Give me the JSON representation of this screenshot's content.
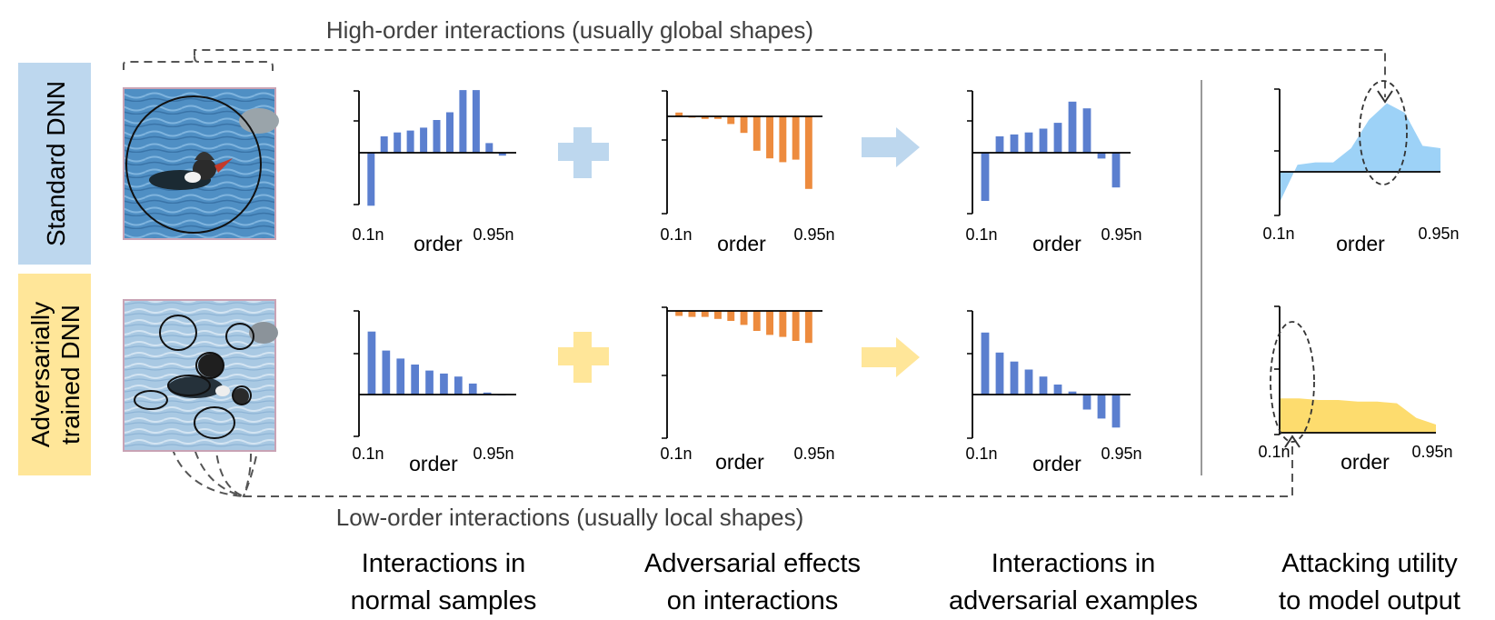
{
  "annotations": {
    "high_order": "High-order interactions (usually global shapes)",
    "low_order": "Low-order interactions (usually local shapes)"
  },
  "rows": [
    {
      "label_lines": [
        "Standard DNN"
      ],
      "color": "#bdd7ee"
    },
    {
      "label_lines": [
        "Adversarially",
        "trained DNN"
      ],
      "color": "#ffe699"
    }
  ],
  "columns": [
    {
      "caption_lines": [
        "Interactions in",
        "normal samples"
      ]
    },
    {
      "caption_lines": [
        "Adversarial effects",
        "on interactions"
      ]
    },
    {
      "caption_lines": [
        "Interactions in",
        "adversarial examples"
      ]
    },
    {
      "caption_lines": [
        "Attacking utility",
        "to model output"
      ]
    }
  ],
  "colors": {
    "bar_blue": "#5b7fcf",
    "bar_orange": "#ed8b3e",
    "area_blue": "#9dd2f7",
    "area_yellow": "#fddc6e",
    "plus_blue": "#bdd7ee",
    "plus_yellow": "#ffe699"
  },
  "chart_data": [
    {
      "type": "bar",
      "panel": "standard-normal",
      "xlabel": "order",
      "x_tick_labels": [
        "0.1n",
        "0.95n"
      ],
      "series": [
        {
          "values": [
            -5.5,
            1.7,
            2.1,
            2.3,
            2.6,
            3.4,
            4.2,
            6.5,
            6.5,
            1.0,
            -0.3
          ]
        }
      ]
    },
    {
      "type": "bar",
      "panel": "standard-adversarial-effect",
      "xlabel": "order",
      "x_tick_labels": [
        "0.1n",
        "0.95n"
      ],
      "series": [
        {
          "values": [
            0.3,
            -0.1,
            -0.2,
            -0.2,
            -0.6,
            -1.3,
            -2.7,
            -3.3,
            -3.6,
            -3.4,
            -5.7
          ]
        }
      ]
    },
    {
      "type": "bar",
      "panel": "standard-adversarial-example",
      "xlabel": "order",
      "x_tick_labels": [
        "0.1n",
        "0.95n"
      ],
      "series": [
        {
          "values": [
            -5.0,
            1.7,
            1.9,
            2.1,
            2.5,
            3.1,
            5.3,
            4.6,
            -0.6,
            -3.6
          ]
        }
      ]
    },
    {
      "type": "area",
      "panel": "standard-attacking-utility",
      "xlabel": "order",
      "x_tick_labels": [
        "0.1n",
        "0.95n"
      ],
      "series": [
        {
          "values": [
            -1.3,
            0.3,
            0.4,
            0.4,
            1.0,
            2.2,
            2.9,
            2.5,
            1.1,
            1.0
          ]
        }
      ]
    },
    {
      "type": "bar",
      "panel": "adv-trained-normal",
      "xlabel": "order",
      "x_tick_labels": [
        "0.1n",
        "0.95n"
      ],
      "series": [
        {
          "values": [
            6.3,
            4.4,
            3.6,
            3.0,
            2.4,
            2.1,
            1.8,
            1.1,
            0.2,
            0.0
          ]
        }
      ]
    },
    {
      "type": "bar",
      "panel": "adv-trained-adversarial-effect",
      "xlabel": "order",
      "x_tick_labels": [
        "0.1n",
        "0.95n"
      ],
      "series": [
        {
          "values": [
            -0.25,
            -0.3,
            -0.3,
            -0.4,
            -0.5,
            -0.7,
            -1.0,
            -1.2,
            -1.3,
            -1.5,
            -1.6
          ]
        }
      ]
    },
    {
      "type": "bar",
      "panel": "adv-trained-adversarial-example",
      "xlabel": "order",
      "x_tick_labels": [
        "0.1n",
        "0.95n"
      ],
      "series": [
        {
          "values": [
            6.2,
            4.2,
            3.3,
            2.5,
            1.8,
            1.0,
            0.3,
            -1.5,
            -2.4,
            -3.3
          ]
        }
      ]
    },
    {
      "type": "area",
      "panel": "adv-trained-attacking-utility",
      "xlabel": "order",
      "x_tick_labels": [
        "0.1n",
        "0.95n"
      ],
      "series": [
        {
          "values": [
            1.05,
            1.05,
            1.0,
            1.0,
            0.95,
            0.95,
            0.9,
            0.45,
            0.25
          ]
        }
      ]
    }
  ]
}
